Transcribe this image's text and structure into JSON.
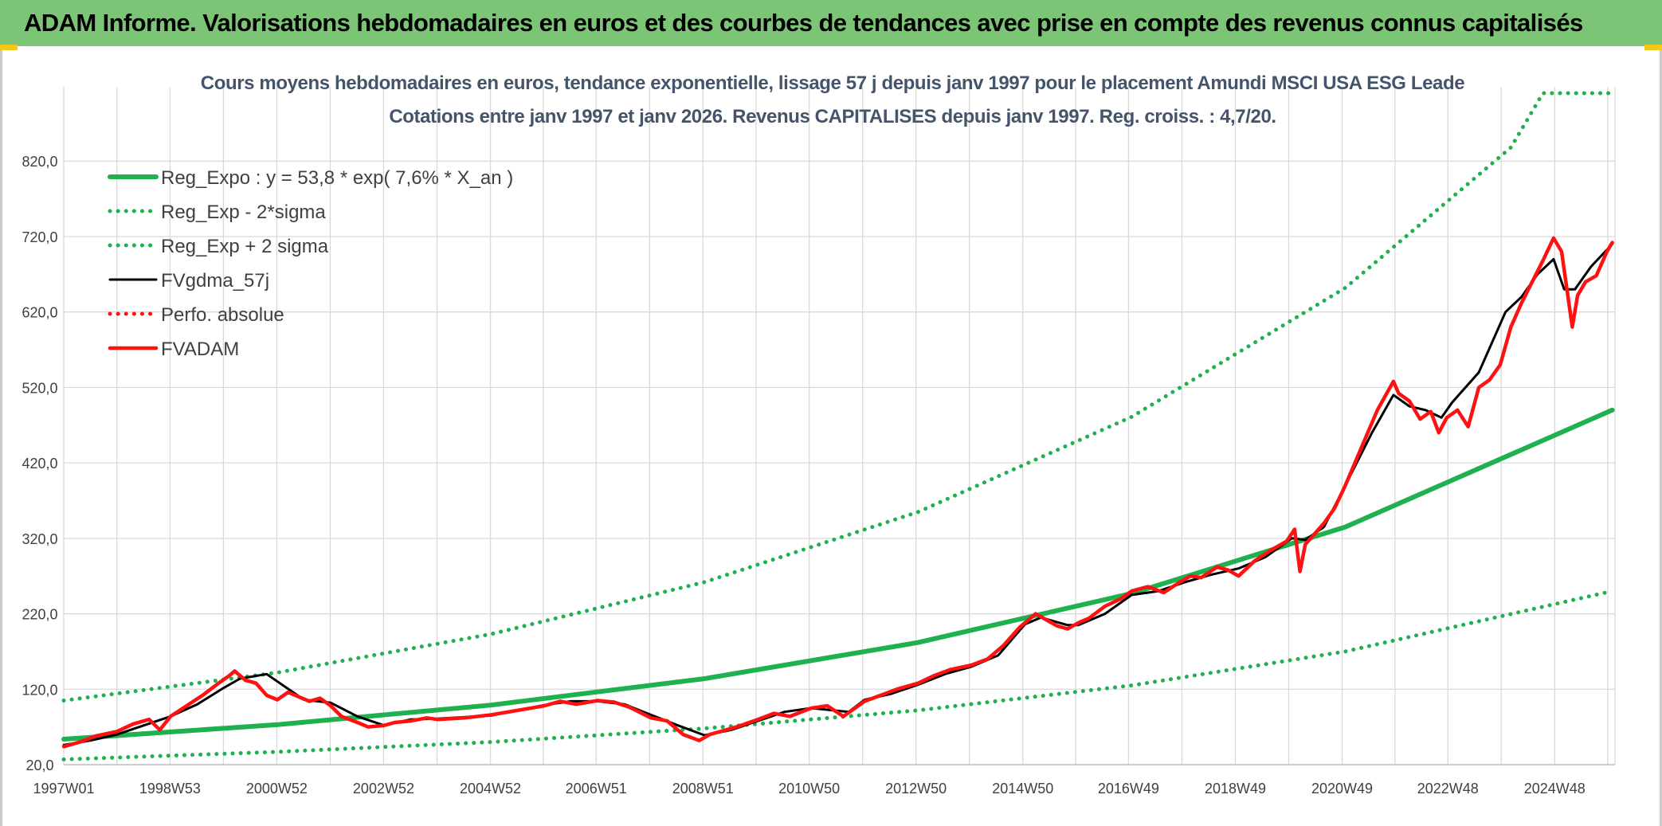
{
  "banner": {
    "title": "ADAM Informe. Valorisations hebdomadaires en euros et des courbes de tendances avec prise en compte des revenus connus capitalisés"
  },
  "colors": {
    "banner_bg": "#7cc576",
    "trend_green": "#1fb14f",
    "price_red": "#ff1111",
    "mma_black": "#000000",
    "grid": "#d9d9d9"
  },
  "chart_data": {
    "type": "line",
    "title": "Cours moyens hebdomadaires en euros, tendance exponentielle, lissage 57 j depuis janv 1997 pour le placement Amundi MSCI USA ESG Leade",
    "subtitle": "Cotations entre janv 1997 et janv 2026. Revenus CAPITALISES depuis janv 1997. Reg. croiss. : 4,7/20.",
    "xlabel": "",
    "ylabel": "",
    "x_tick_labels": [
      "1997W01",
      "1998W53",
      "2000W52",
      "2002W52",
      "2004W52",
      "2006W51",
      "2008W51",
      "2010W50",
      "2012W50",
      "2014W50",
      "2016W49",
      "2018W49",
      "2020W49",
      "2022W48",
      "2024W48"
    ],
    "x_tick_years": [
      1997.0,
      1998.99,
      2000.99,
      2002.99,
      2004.99,
      2006.97,
      2008.97,
      2010.96,
      2012.96,
      2014.96,
      2016.94,
      2018.94,
      2020.94,
      2022.92,
      2024.92
    ],
    "x_range": [
      1997.0,
      2026.05
    ],
    "ylim": [
      20,
      910
    ],
    "y_ticks": [
      20,
      120,
      220,
      320,
      420,
      520,
      620,
      720,
      820
    ],
    "y_tick_labels": [
      "20,0",
      "120,0",
      "220,0",
      "320,0",
      "420,0",
      "520,0",
      "620,0",
      "720,0",
      "820,0"
    ],
    "grid": true,
    "legend_position": "top-left",
    "series": [
      {
        "name": "Reg_Expo : y = 53,8 * exp( 7,6% *  X_an )",
        "style": "solid-thick",
        "color": "#1fb14f",
        "x": [
          1997.0,
          2001.0,
          2005.0,
          2009.0,
          2013.0,
          2017.0,
          2021.0,
          2026.0
        ],
        "values": [
          53.8,
          73,
          99,
          134,
          182,
          247,
          335,
          490
        ]
      },
      {
        "name": "Reg_Exp - 2*sigma",
        "style": "dotted",
        "color": "#1fb14f",
        "x": [
          1997.0,
          2001.0,
          2005.0,
          2009.0,
          2013.0,
          2017.0,
          2021.0,
          2026.0
        ],
        "values": [
          27,
          37,
          50,
          68,
          92,
          125,
          170,
          250
        ]
      },
      {
        "name": "Reg_Exp + 2 sigma",
        "style": "dotted",
        "color": "#1fb14f",
        "x": [
          1997.0,
          2001.0,
          2005.0,
          2009.0,
          2013.0,
          2017.0,
          2021.0,
          2024.1,
          2024.7,
          2026.0
        ],
        "values": [
          105,
          142,
          193,
          262,
          355,
          481,
          652,
          838,
          910,
          910
        ]
      },
      {
        "name": "FVgdma_57j",
        "style": "solid",
        "color": "#000000",
        "x": [
          1997.0,
          1997.5,
          1998.0,
          1998.5,
          1999.0,
          1999.5,
          2000.0,
          2000.3,
          2000.8,
          2001.5,
          2002.0,
          2002.5,
          2003.0,
          2003.5,
          2004.0,
          2005.0,
          2006.0,
          2006.5,
          2007.0,
          2007.5,
          2008.0,
          2008.5,
          2009.0,
          2009.5,
          2010.0,
          2010.5,
          2011.0,
          2011.7,
          2012.0,
          2012.5,
          2013.0,
          2013.5,
          2014.0,
          2014.5,
          2015.0,
          2015.3,
          2015.8,
          2016.0,
          2016.5,
          2017.0,
          2017.5,
          2018.0,
          2018.5,
          2019.0,
          2019.5,
          2020.0,
          2020.25,
          2020.6,
          2021.0,
          2021.5,
          2021.9,
          2022.2,
          2022.5,
          2022.8,
          2023.0,
          2023.5,
          2024.0,
          2024.3,
          2024.6,
          2024.9,
          2025.1,
          2025.3,
          2025.6,
          2026.0
        ],
        "values": [
          46,
          52,
          60,
          72,
          84,
          100,
          122,
          134,
          140,
          106,
          102,
          84,
          72,
          80,
          81,
          85,
          99,
          104,
          104,
          100,
          86,
          72,
          59,
          66,
          78,
          90,
          95,
          90,
          106,
          114,
          126,
          140,
          150,
          165,
          206,
          215,
          205,
          205,
          220,
          245,
          250,
          262,
          272,
          280,
          295,
          320,
          318,
          335,
          390,
          460,
          510,
          495,
          490,
          480,
          500,
          540,
          620,
          640,
          670,
          690,
          650,
          650,
          680,
          710
        ]
      },
      {
        "name": "Perfo. absolue",
        "style": "dotted",
        "color": "#ff1111",
        "x": [],
        "values": []
      },
      {
        "name": "FVADAM",
        "style": "solid-thick",
        "color": "#ff1111",
        "x": [
          1997.0,
          1997.3,
          1997.6,
          1998.0,
          1998.3,
          1998.6,
          1998.8,
          1999.0,
          1999.3,
          1999.6,
          1999.9,
          2000.1,
          2000.2,
          2000.4,
          2000.6,
          2000.8,
          2001.0,
          2001.2,
          2001.4,
          2001.6,
          2001.8,
          2002.0,
          2002.2,
          2002.5,
          2002.7,
          2003.0,
          2003.2,
          2003.5,
          2003.8,
          2004.0,
          2004.5,
          2005.0,
          2005.5,
          2006.0,
          2006.3,
          2006.6,
          2007.0,
          2007.3,
          2007.6,
          2008.0,
          2008.3,
          2008.6,
          2008.9,
          2009.1,
          2009.3,
          2009.6,
          2010.0,
          2010.3,
          2010.6,
          2011.0,
          2011.3,
          2011.6,
          2011.8,
          2012.0,
          2012.3,
          2012.6,
          2013.0,
          2013.3,
          2013.6,
          2014.0,
          2014.3,
          2014.6,
          2014.9,
          2015.2,
          2015.4,
          2015.6,
          2015.8,
          2016.0,
          2016.2,
          2016.5,
          2016.8,
          2017.0,
          2017.3,
          2017.6,
          2017.9,
          2018.1,
          2018.3,
          2018.6,
          2018.8,
          2019.0,
          2019.3,
          2019.6,
          2019.9,
          2020.05,
          2020.15,
          2020.25,
          2020.4,
          2020.6,
          2020.8,
          2021.0,
          2021.3,
          2021.6,
          2021.9,
          2022.0,
          2022.2,
          2022.4,
          2022.6,
          2022.75,
          2022.9,
          2023.1,
          2023.3,
          2023.5,
          2023.7,
          2023.9,
          2024.1,
          2024.3,
          2024.5,
          2024.7,
          2024.9,
          2025.05,
          2025.15,
          2025.25,
          2025.35,
          2025.5,
          2025.7,
          2025.9,
          2026.0
        ],
        "values": [
          44,
          50,
          58,
          64,
          74,
          80,
          66,
          84,
          98,
          112,
          128,
          138,
          144,
          132,
          128,
          112,
          106,
          116,
          110,
          104,
          108,
          98,
          84,
          76,
          70,
          72,
          76,
          78,
          82,
          80,
          82,
          86,
          92,
          98,
          104,
          100,
          105,
          103,
          96,
          82,
          78,
          60,
          52,
          60,
          64,
          70,
          80,
          88,
          84,
          95,
          98,
          84,
          94,
          104,
          112,
          120,
          128,
          138,
          146,
          152,
          160,
          178,
          202,
          220,
          212,
          204,
          200,
          208,
          214,
          230,
          240,
          250,
          256,
          248,
          262,
          270,
          268,
          282,
          278,
          270,
          290,
          304,
          316,
          332,
          276,
          312,
          324,
          340,
          360,
          390,
          440,
          490,
          528,
          512,
          502,
          478,
          488,
          460,
          480,
          490,
          468,
          520,
          530,
          550,
          600,
          632,
          660,
          688,
          718,
          700,
          650,
          600,
          642,
          660,
          668,
          700,
          712
        ]
      }
    ]
  }
}
